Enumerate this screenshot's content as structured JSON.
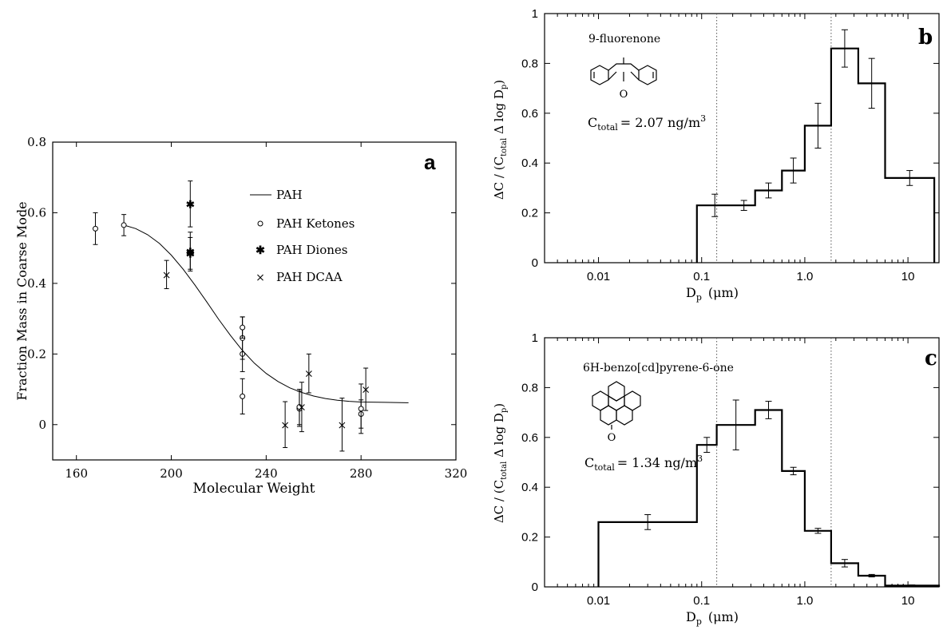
{
  "chart_data": [
    {
      "type": "scatter",
      "panel_label": "a",
      "xlabel": "Molecular Weight",
      "ylabel": "Fraction Mass in Coarse Mode",
      "xlim": [
        150,
        320
      ],
      "ylim": [
        -0.1,
        0.8
      ],
      "xticks": [
        "160",
        "200",
        "240",
        "280",
        "320"
      ],
      "yticks": [
        "0",
        "0.2",
        "0.4",
        "0.6",
        "0.8"
      ],
      "legend_position": "upper-right",
      "legend": [
        "PAH",
        "PAH Ketones",
        "PAH Diones",
        "PAH DCAA"
      ],
      "series": [
        {
          "name": "PAH",
          "kind": "fit-line",
          "points": [
            [
              180,
              0.565
            ],
            [
              185,
              0.555
            ],
            [
              190,
              0.538
            ],
            [
              195,
              0.513
            ],
            [
              200,
              0.48
            ],
            [
              205,
              0.44
            ],
            [
              210,
              0.395
            ],
            [
              215,
              0.347
            ],
            [
              220,
              0.298
            ],
            [
              225,
              0.252
            ],
            [
              230,
              0.21
            ],
            [
              235,
              0.174
            ],
            [
              240,
              0.145
            ],
            [
              245,
              0.122
            ],
            [
              250,
              0.104
            ],
            [
              255,
              0.091
            ],
            [
              260,
              0.081
            ],
            [
              265,
              0.074
            ],
            [
              270,
              0.069
            ],
            [
              275,
              0.066
            ],
            [
              280,
              0.064
            ],
            [
              290,
              0.063
            ],
            [
              300,
              0.062
            ]
          ]
        },
        {
          "name": "PAH Ketones",
          "kind": "circle",
          "points": [
            [
              168,
              0.555,
              0.045
            ],
            [
              180,
              0.565,
              0.03
            ],
            [
              230,
              0.2,
              0.05
            ],
            [
              230,
              0.08,
              0.05
            ],
            [
              230,
              0.245,
              0.06
            ],
            [
              230,
              0.275,
              0.03
            ],
            [
              254,
              0.045,
              0.05
            ],
            [
              254,
              0.05,
              0.05
            ],
            [
              280,
              0.03,
              0.04
            ],
            [
              280,
              0.045,
              0.07
            ]
          ]
        },
        {
          "name": "PAH Diones",
          "kind": "star",
          "points": [
            [
              208,
              0.625,
              0.065
            ],
            [
              208,
              0.49,
              0.055
            ],
            [
              208,
              0.485,
              0.045
            ]
          ]
        },
        {
          "name": "PAH DCAA",
          "kind": "x",
          "points": [
            [
              198,
              0.425,
              0.04
            ],
            [
              248,
              0,
              0.065
            ],
            [
              258,
              0.145,
              0.055
            ],
            [
              272,
              0,
              0.075
            ],
            [
              282,
              0.1,
              0.06
            ],
            [
              255,
              0.05,
              0.07
            ]
          ]
        }
      ]
    },
    {
      "type": "step",
      "panel_label": "b",
      "compound": "9-fluorenone",
      "total_label": "C",
      "total_sub": "total",
      "total_value": "2.07 ng/m",
      "total_sup": "3",
      "structure_atom": "O",
      "xlabel_main": "D",
      "xlabel_sub": "p",
      "xlabel_unit": "(μm)",
      "ylabel": "ΔC / (C",
      "ylabel_sub": "total",
      "ylabel_mid": " Δ log D",
      "ylabel_sub2": "p",
      "ylabel_end": ")",
      "xscale": "log",
      "xlim": [
        0.003,
        20
      ],
      "ylim": [
        0,
        1
      ],
      "xticks": [
        {
          "v": 0.01,
          "label": "0.01"
        },
        {
          "v": 0.1,
          "label": "0.1"
        },
        {
          "v": 1,
          "label": "1.0"
        },
        {
          "v": 10,
          "label": "10"
        }
      ],
      "yticks": [
        "0",
        "0.2",
        "0.4",
        "0.6",
        "0.8",
        "1"
      ],
      "dotted_lines": [
        0.14,
        1.8
      ],
      "bins": [
        {
          "lo": 0.09,
          "hi": 0.2,
          "y": 0.23,
          "err": 0.045
        },
        {
          "lo": 0.2,
          "hi": 0.33,
          "y": 0.23,
          "err": 0.02
        },
        {
          "lo": 0.33,
          "hi": 0.6,
          "y": 0.29,
          "err": 0.03
        },
        {
          "lo": 0.6,
          "hi": 1.0,
          "y": 0.37,
          "err": 0.05
        },
        {
          "lo": 1.0,
          "hi": 1.8,
          "y": 0.55,
          "err": 0.09
        },
        {
          "lo": 1.8,
          "hi": 3.3,
          "y": 0.86,
          "err": 0.075
        },
        {
          "lo": 3.3,
          "hi": 6.0,
          "y": 0.72,
          "err": 0.1
        },
        {
          "lo": 6.0,
          "hi": 18,
          "y": 0.34,
          "err": 0.03
        }
      ]
    },
    {
      "type": "step",
      "panel_label": "c",
      "compound": "6H-benzo[cd]pyrene-6-one",
      "total_label": "C",
      "total_sub": "total",
      "total_value": "1.34 ng/m",
      "total_sup": "3",
      "structure_atom": "O",
      "xlabel_main": "D",
      "xlabel_sub": "p",
      "xlabel_unit": "(μm)",
      "ylabel": "ΔC / (C",
      "ylabel_sub": "total",
      "ylabel_mid": " Δ log D",
      "ylabel_sub2": "p",
      "ylabel_end": ")",
      "xscale": "log",
      "xlim": [
        0.003,
        20
      ],
      "ylim": [
        0,
        1
      ],
      "xticks": [
        {
          "v": 0.01,
          "label": "0.01"
        },
        {
          "v": 0.1,
          "label": "0.1"
        },
        {
          "v": 1,
          "label": "1.0"
        },
        {
          "v": 10,
          "label": "10"
        }
      ],
      "yticks": [
        "0",
        "0.2",
        "0.4",
        "0.6",
        "0.8",
        "1"
      ],
      "dotted_lines": [
        0.14,
        1.8
      ],
      "bins": [
        {
          "lo": 0.01,
          "hi": 0.09,
          "y": 0.26,
          "err": 0.03
        },
        {
          "lo": 0.09,
          "hi": 0.14,
          "y": 0.57,
          "err": 0.03
        },
        {
          "lo": 0.14,
          "hi": 0.33,
          "y": 0.65,
          "err": 0.1
        },
        {
          "lo": 0.33,
          "hi": 0.6,
          "y": 0.71,
          "err": 0.035
        },
        {
          "lo": 0.6,
          "hi": 1.0,
          "y": 0.465,
          "err": 0.015
        },
        {
          "lo": 1.0,
          "hi": 1.8,
          "y": 0.225,
          "err": 0.01
        },
        {
          "lo": 1.8,
          "hi": 3.3,
          "y": 0.095,
          "err": 0.015
        },
        {
          "lo": 3.3,
          "hi": 6.0,
          "y": 0.045,
          "err": 0.005
        },
        {
          "lo": 6.0,
          "hi": 20,
          "y": 0.005,
          "err": 0.003
        }
      ]
    }
  ]
}
